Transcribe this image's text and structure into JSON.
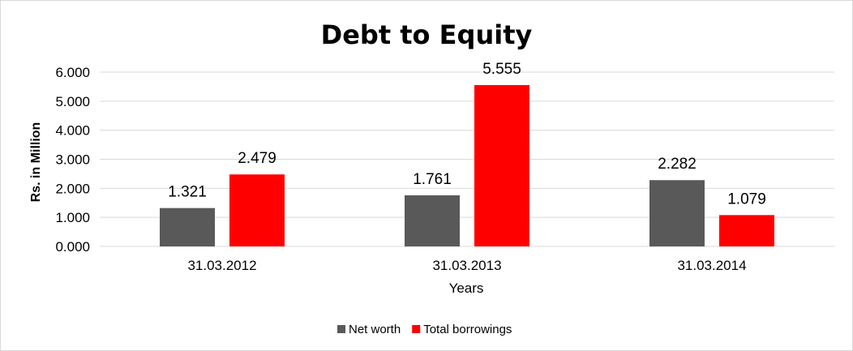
{
  "chart_data": {
    "type": "bar",
    "title": "Debt to Equity",
    "xlabel": "Years",
    "ylabel": "Rs. in Million",
    "categories": [
      "31.03.2012",
      "31.03.2013",
      "31.03.2014"
    ],
    "series": [
      {
        "name": "Net worth",
        "color": "#595959",
        "values": [
          1.321,
          1.761,
          2.282
        ],
        "labels": [
          "1.321",
          "1.761",
          "2.282"
        ]
      },
      {
        "name": "Total borrowings",
        "color": "#ff0000",
        "values": [
          2.479,
          5.555,
          1.079
        ],
        "labels": [
          "2.479",
          "5.555",
          "1.079"
        ]
      }
    ],
    "ylim": [
      0,
      6
    ],
    "yticks": [
      0,
      1,
      2,
      3,
      4,
      5,
      6
    ],
    "ytick_labels": [
      "0.000",
      "1.000",
      "2.000",
      "3.000",
      "4.000",
      "5.000",
      "6.000"
    ],
    "grid": true,
    "legend": "bottom"
  }
}
